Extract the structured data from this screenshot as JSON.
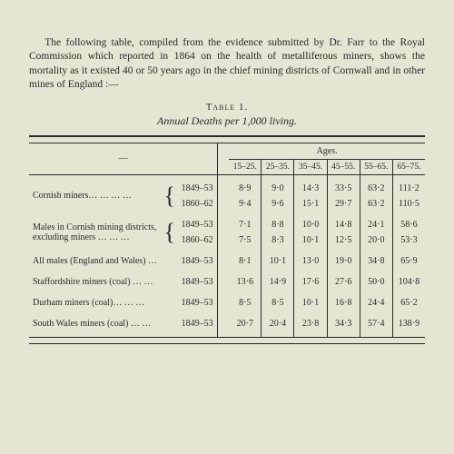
{
  "intro": "The following table, compiled from the evidence submitted by Dr. Farr to the Royal Commission which reported in 1864 on the health of metalliferous miners, shows the mortality as it existed 40 or 50 years ago in the chief mining districts of Cornwall and in other mines of England :—",
  "table_label": "Table 1.",
  "table_title": "Annual Deaths per 1,000 living.",
  "ages_label": "Ages.",
  "dash": "—",
  "age_cols": [
    "15–25.",
    "25–35.",
    "35–45.",
    "45–55.",
    "55–65.",
    "65–75."
  ],
  "groups": [
    {
      "label": "Cornish miners…   …   …   …",
      "rows": [
        {
          "period": "1849–53",
          "vals": [
            "8·9",
            "9·0",
            "14·3",
            "33·5",
            "63·2",
            "111·2"
          ]
        },
        {
          "period": "1860–62",
          "vals": [
            "9·4",
            "9·6",
            "15·1",
            "29·7",
            "63·2",
            "110·5"
          ]
        }
      ]
    },
    {
      "label": "Males in Cornish mining districts,\n   excluding miners   …   …   …",
      "rows": [
        {
          "period": "1849–53",
          "vals": [
            "7·1",
            "8·8",
            "10·0",
            "14·8",
            "24·1",
            "58·6"
          ]
        },
        {
          "period": "1860–62",
          "vals": [
            "7·5",
            "8·3",
            "10·1",
            "12·5",
            "20·0",
            "53·3"
          ]
        }
      ]
    }
  ],
  "single_rows": [
    {
      "label": "All males (England and Wales)   …",
      "period": "1849–53",
      "vals": [
        "8·1",
        "10·1",
        "13·0",
        "19·0",
        "34·8",
        "65·9"
      ]
    },
    {
      "label": "Staffordshire miners (coal)   …   …",
      "period": "1849–53",
      "vals": [
        "13·6",
        "14·9",
        "17·6",
        "27·6",
        "50·0",
        "104·8"
      ]
    },
    {
      "label": "Durham miners (coal)…   …   …",
      "period": "1849–53",
      "vals": [
        "8·5",
        "8·5",
        "10·1",
        "16·8",
        "24·4",
        "65·2"
      ]
    },
    {
      "label": "South Wales miners (coal)   …   …",
      "period": "1849–53",
      "vals": [
        "20·7",
        "20·4",
        "23·8",
        "34·3",
        "57·4",
        "138·9"
      ]
    }
  ]
}
